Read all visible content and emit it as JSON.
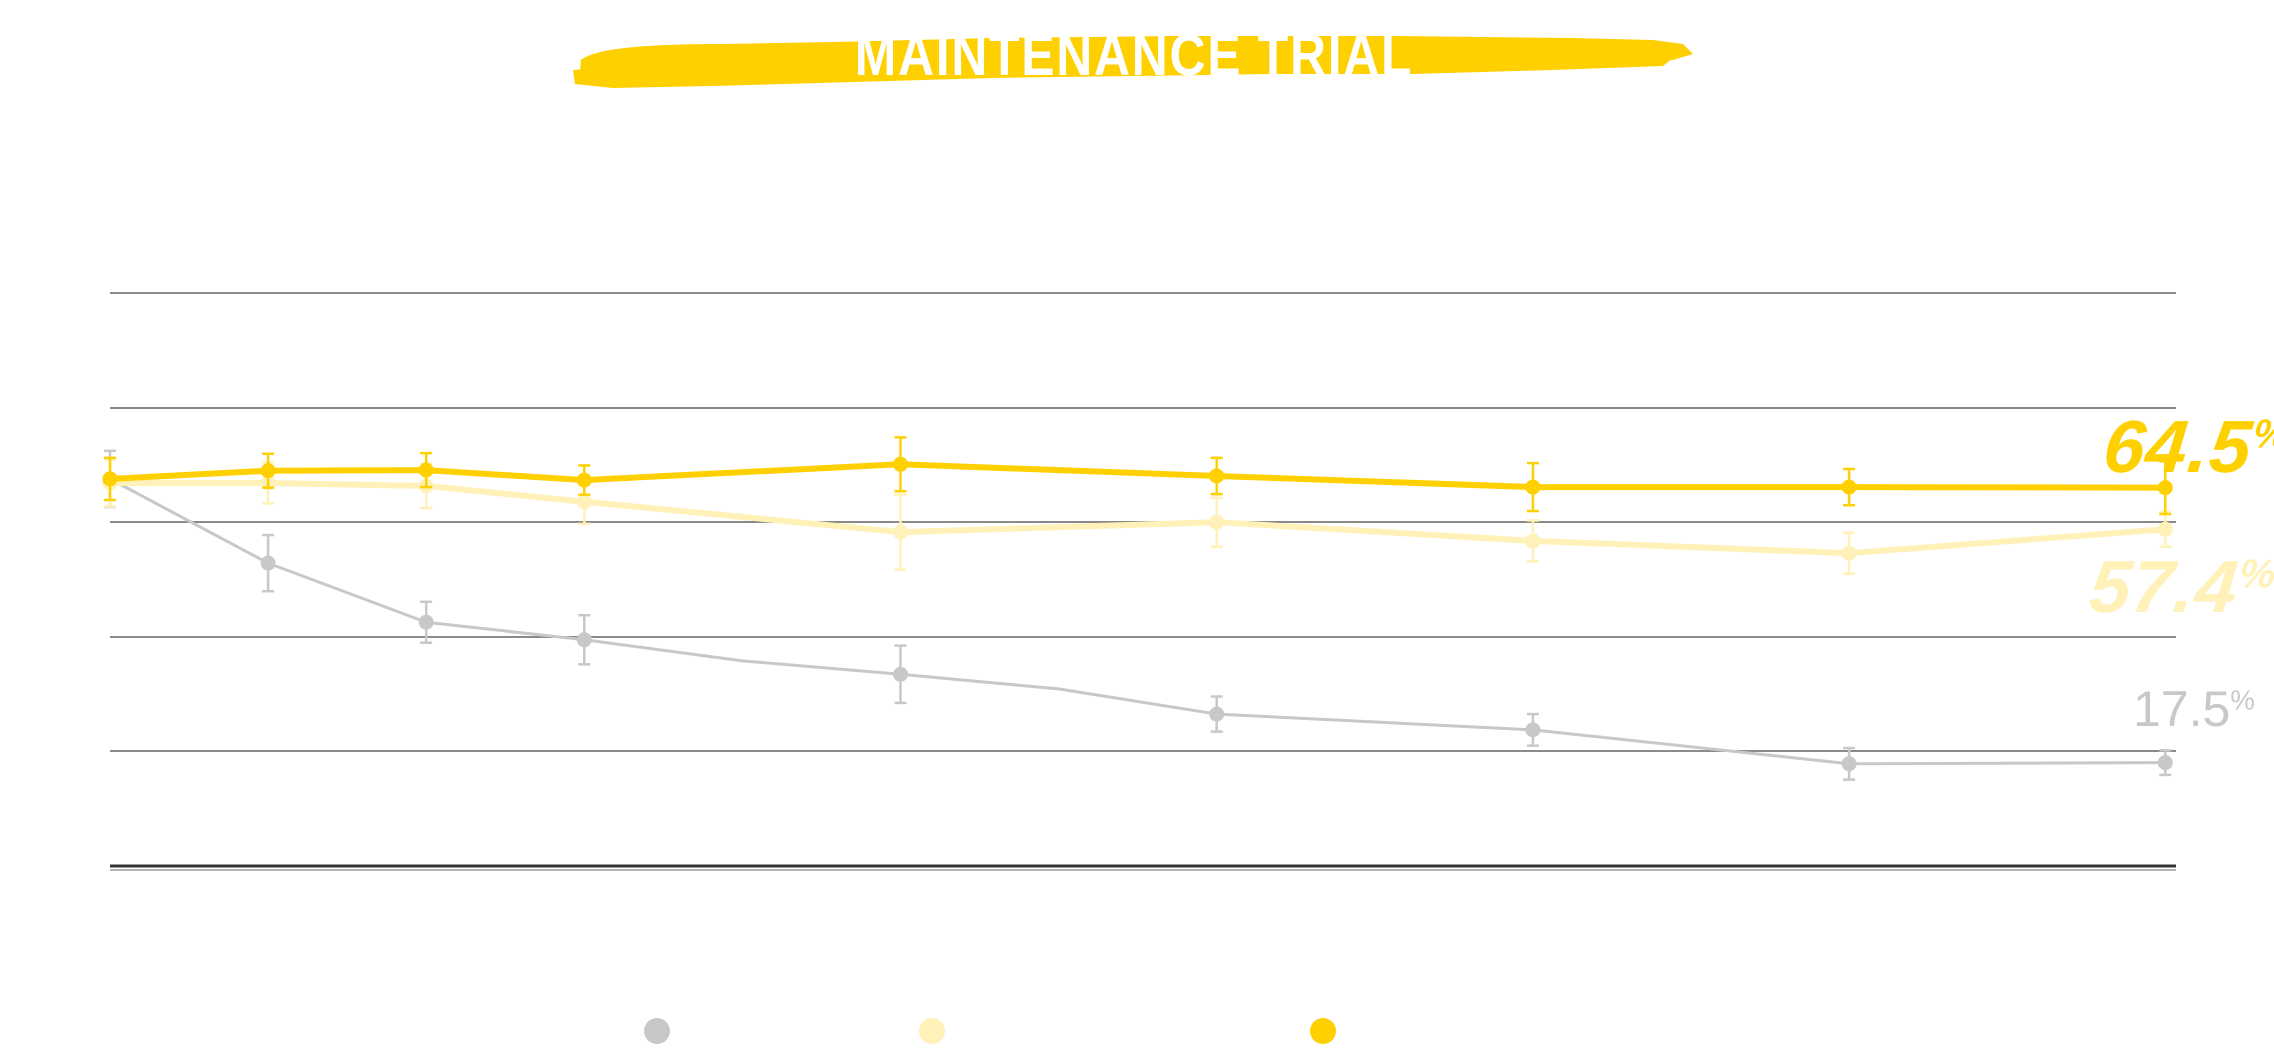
{
  "title": "MAINTENANCE TRIAL",
  "colors": {
    "title_brush": "#FFD000",
    "gridline": "#8A8A8A",
    "baseline": "#333333"
  },
  "end_labels": {
    "gold": {
      "value": "64.5",
      "unit": "%"
    },
    "light": {
      "value": "57.4",
      "unit": "%"
    },
    "gray": {
      "value": "17.5",
      "unit": "%"
    }
  },
  "legend": {
    "items": [
      {
        "label": "",
        "color": "#C8C8CA",
        "icon": "circle-marker"
      },
      {
        "label": "",
        "color": "#FFF1B8",
        "icon": "circle-marker"
      },
      {
        "label": "",
        "color": "#FFD000",
        "icon": "circle-marker"
      }
    ]
  },
  "chart_data": {
    "type": "line",
    "title": "MAINTENANCE TRIAL",
    "xlabel": "",
    "ylabel": "",
    "ylim": [
      0,
      100
    ],
    "grid": true,
    "gridlines": [
      0,
      20,
      40,
      60,
      80,
      100
    ],
    "legend_position": "bottom",
    "x": [
      0,
      1,
      2,
      3,
      5,
      7,
      9,
      11,
      13
    ],
    "series": [
      {
        "name": "gray",
        "color": "#C8C8CA",
        "line_width": 3,
        "values": [
          66.0,
          51.6,
          41.5,
          38.5,
          32.6,
          25.8,
          23.1,
          17.3,
          17.5
        ],
        "error": [
          4.8,
          4.8,
          3.5,
          4.2,
          4.9,
          3.0,
          2.7,
          2.7,
          2.1
        ],
        "unmarked_points": [
          {
            "x": 4,
            "value": 34.9
          },
          {
            "x": 6,
            "value": 30.1
          }
        ],
        "end_label": "17.5%"
      },
      {
        "name": "light",
        "color": "#FFF1B8",
        "line_width": 6,
        "values": [
          65.3,
          65.3,
          64.8,
          62.1,
          56.9,
          58.6,
          55.4,
          53.3,
          57.4
        ],
        "error": [
          4.0,
          3.5,
          3.8,
          3.8,
          6.4,
          4.2,
          3.5,
          3.5,
          3.0
        ],
        "end_label": "57.4%"
      },
      {
        "name": "gold",
        "color": "#FFD000",
        "line_width": 6,
        "values": [
          66.0,
          67.4,
          67.5,
          65.8,
          68.5,
          66.5,
          64.6,
          64.6,
          64.5
        ],
        "error": [
          3.6,
          2.9,
          2.9,
          2.5,
          4.6,
          3.1,
          4.1,
          3.1,
          4.5
        ],
        "end_label": "64.5%"
      }
    ]
  }
}
